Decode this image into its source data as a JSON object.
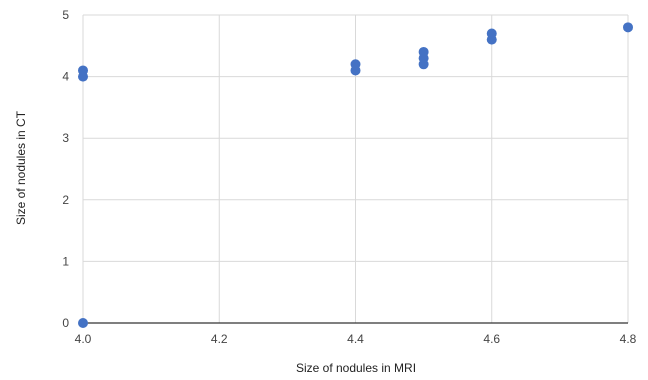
{
  "chart_data": {
    "type": "scatter",
    "title": "",
    "xlabel": "Size of nodules in MRI",
    "ylabel": "Size of nodules in CT",
    "xlim": [
      4.0,
      4.8
    ],
    "ylim": [
      0,
      5
    ],
    "x_ticks": [
      "4.0",
      "4.2",
      "4.4",
      "4.6",
      "4.8"
    ],
    "y_ticks": [
      "0",
      "1",
      "2",
      "3",
      "4",
      "5"
    ],
    "grid": true,
    "legend": "none",
    "point_color": "#4472C4",
    "series": [
      {
        "points": [
          {
            "x": 4.0,
            "y": 0.0
          },
          {
            "x": 4.0,
            "y": 4.0
          },
          {
            "x": 4.0,
            "y": 4.1
          },
          {
            "x": 4.4,
            "y": 4.1
          },
          {
            "x": 4.4,
            "y": 4.2
          },
          {
            "x": 4.5,
            "y": 4.2
          },
          {
            "x": 4.5,
            "y": 4.3
          },
          {
            "x": 4.5,
            "y": 4.4
          },
          {
            "x": 4.6,
            "y": 4.6
          },
          {
            "x": 4.6,
            "y": 4.7
          },
          {
            "x": 4.8,
            "y": 4.8
          }
        ]
      }
    ]
  }
}
